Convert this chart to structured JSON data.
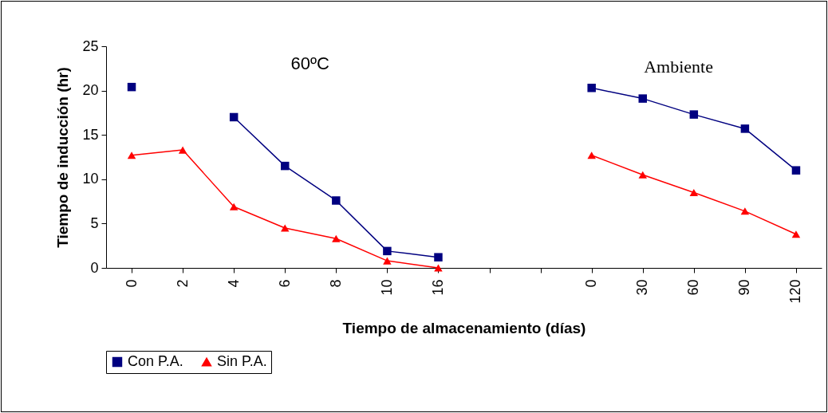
{
  "chart_data": {
    "type": "line",
    "xlabel": "Tiempo de almacenamiento (días)",
    "ylabel": "Tiempo de inducción (hr)",
    "categories": [
      "0",
      "2",
      "4",
      "6",
      "8",
      "10",
      "16",
      null,
      null,
      "0",
      "30",
      "60",
      "90",
      "120"
    ],
    "series": [
      {
        "name": "Con P.A.",
        "color": "#000080",
        "marker": "square",
        "values": [
          20.4,
          null,
          17.0,
          11.5,
          7.6,
          1.9,
          1.2,
          null,
          null,
          20.3,
          19.1,
          17.3,
          15.7,
          11.0
        ]
      },
      {
        "name": "Sin P.A.",
        "color": "#ff0000",
        "marker": "triangle",
        "values": [
          12.7,
          13.3,
          6.9,
          4.5,
          3.3,
          0.8,
          0,
          null,
          null,
          12.7,
          10.5,
          8.5,
          6.4,
          3.8
        ]
      }
    ],
    "annotations": [
      "60ºC",
      "Ambiente"
    ],
    "ylim": [
      0,
      25
    ],
    "yticks": [
      0,
      5,
      10,
      15,
      20,
      25
    ],
    "grid": false,
    "legend": "bottom",
    "line_style": "solid"
  }
}
